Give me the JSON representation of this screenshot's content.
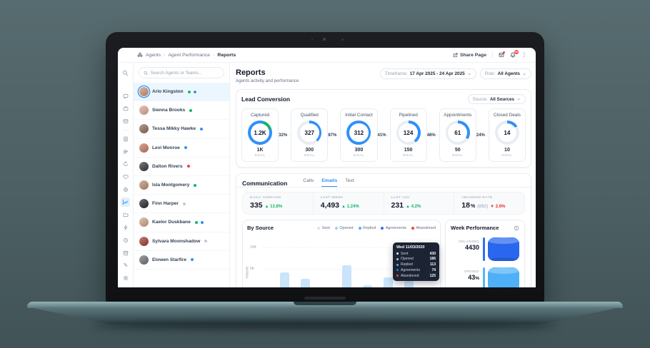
{
  "topbar": {
    "breadcrumb": [
      "Agents",
      "Agent Performance",
      "Reports"
    ],
    "share_label": "Share Page",
    "bell_badge": "36"
  },
  "page_header": {
    "title": "Reports",
    "subtitle": "Agents activity and performance",
    "timeframe_label": "Timeframe:",
    "timeframe_value": "17 Apr 2025 - 24 Apr 2025",
    "role_label": "Role:",
    "role_value": "All Agents"
  },
  "sidebar": {
    "search_placeholder": "Search Agents or Teams...",
    "agents": [
      {
        "name": "Arlo Kingston",
        "selected": true,
        "avatar_color": "#c99072",
        "badges": [
          "#12b76a",
          "#2e90fa"
        ]
      },
      {
        "name": "Sienna Brooks",
        "selected": false,
        "avatar_color": "#d9a591",
        "badges": [
          "#12b76a"
        ]
      },
      {
        "name": "Tessa Mikky Hawke",
        "selected": false,
        "avatar_color": "#8a6a57",
        "badges": [
          "#2e90fa"
        ]
      },
      {
        "name": "Levi Monroe",
        "selected": false,
        "avatar_color": "#c4785e",
        "badges": [
          "#2e90fa"
        ]
      },
      {
        "name": "Dalton Rivers",
        "selected": false,
        "avatar_color": "#30343b",
        "badges": [
          "#f04438"
        ]
      },
      {
        "name": "Isla Montgomery",
        "selected": false,
        "avatar_color": "#b98b6e",
        "badges": [
          "#12b76a"
        ]
      },
      {
        "name": "Finn Harper",
        "selected": false,
        "avatar_color": "#23262b",
        "badges": [
          "#c3c9d2"
        ]
      },
      {
        "name": "Kaelor Duskbane",
        "selected": false,
        "avatar_color": "#caa287",
        "badges": [
          "#12b76a",
          "#2e90fa"
        ]
      },
      {
        "name": "Sylvara Moonshadow",
        "selected": false,
        "avatar_color": "#a03a2e",
        "badges": [
          "#c3c9d2"
        ]
      },
      {
        "name": "Elowen Starfire",
        "selected": false,
        "avatar_color": "#6b6f76",
        "badges": [
          "#2e90fa"
        ]
      }
    ]
  },
  "lead_conversion": {
    "title": "Lead Conversion",
    "source_label": "Source:",
    "source_value": "All Sources",
    "goal_caption": "GOAL",
    "ring": {
      "color": "#2e90fa",
      "track": "#e7edf4",
      "accent": "#17b26a"
    },
    "stages": [
      {
        "label": "Captured",
        "value": "1.2K",
        "goal": "1K",
        "progress": 100,
        "accent_from": 18,
        "accent_deg": 55,
        "between_pct": "32%"
      },
      {
        "label": "Qualified",
        "value": "327",
        "goal": "300",
        "progress": 38,
        "between_pct": "87%"
      },
      {
        "label": "Initial Contact",
        "value": "312",
        "goal": "300",
        "progress": 100,
        "between_pct": "41%"
      },
      {
        "label": "Pipelined",
        "value": "124",
        "goal": "150",
        "progress": 40,
        "between_pct": "48%"
      },
      {
        "label": "Appointments",
        "value": "61",
        "goal": "50",
        "progress": 34,
        "between_pct": "24%"
      },
      {
        "label": "Closed Deals",
        "value": "14",
        "goal": "10",
        "progress": 16,
        "between_pct": ""
      }
    ]
  },
  "communication": {
    "title": "Communication",
    "tabs": [
      "Calls",
      "Emails",
      "Text"
    ],
    "active_tab": "Emails",
    "stats": [
      {
        "label": "DAILY AVERAGE",
        "value": "335",
        "suffix": "",
        "paren": "",
        "arrow": "▲",
        "delta": "13.8%",
        "delta_color": "#12b76a"
      },
      {
        "label": "LAST WEEK",
        "value": "4,493",
        "suffix": "",
        "paren": "",
        "arrow": "▲",
        "delta": "1.24%",
        "delta_color": "#12b76a"
      },
      {
        "label": "LAST 24H",
        "value": "231",
        "suffix": "",
        "paren": "",
        "arrow": "▲",
        "delta": "4.2%",
        "delta_color": "#12b76a"
      },
      {
        "label": "ABANDON RATE",
        "value": "18",
        "suffix": "%",
        "paren": "(892)",
        "arrow": "▼",
        "delta": "2.6%",
        "delta_color": "#e4352c"
      }
    ]
  },
  "chart_data": [
    {
      "type": "bar",
      "stacked": true,
      "title": "By Source",
      "ylabel": "Volume",
      "yticks": [
        "10K",
        "5K"
      ],
      "grid": "dashed-horizontal",
      "legend_position": "top-right",
      "legend": [
        {
          "label": "Sent",
          "color": "#cde6fc"
        },
        {
          "label": "Opened",
          "color": "#9bd0f9"
        },
        {
          "label": "Replied",
          "color": "#55aef5"
        },
        {
          "label": "Agreements",
          "color": "#2d74ee"
        },
        {
          "label": "Abandoned",
          "color": "#f04438"
        }
      ],
      "unit": "thousands",
      "bars": [
        {
          "sent": 4.2,
          "opened": 2.2,
          "abandoned": 1.1
        },
        {
          "sent": 5.4,
          "opened": 0,
          "abandoned": 0.6
        },
        {
          "sent": 2.0,
          "opened": 0,
          "abandoned": 1.0
        },
        {
          "sent": 5.7,
          "opened": 2.4,
          "abandoned": 1.1
        },
        {
          "sent": 4.5,
          "opened": 0,
          "abandoned": 0
        },
        {
          "sent": 4.3,
          "opened": 1.2,
          "abandoned": 0.8
        },
        {
          "sent": 5.5,
          "opened": 0,
          "abandoned": 0
        }
      ],
      "tooltip": {
        "title": "Wed 11/03/2020",
        "rows": [
          {
            "label": "Sent",
            "value": "430",
            "color": "#e8f2fd"
          },
          {
            "label": "Opened",
            "value": "186",
            "color": "#9bd0f9"
          },
          {
            "label": "Replied",
            "value": "113",
            "color": "#55aef5"
          },
          {
            "label": "Agreements",
            "value": "74",
            "color": "#2d74ee"
          },
          {
            "label": "Abandoned",
            "value": "125",
            "color": "#f04438"
          }
        ]
      }
    },
    {
      "type": "cylinder-stack",
      "title": "Week Performance",
      "items": [
        {
          "label": "DELIVERED",
          "value": "4430",
          "suffix": "",
          "line": "#2e72f2",
          "cyl": "#2968ee"
        },
        {
          "label": "OPENED",
          "value": "43",
          "suffix": "%",
          "line": "#58b6f7",
          "cyl": "#4fb0f7"
        }
      ]
    }
  ]
}
